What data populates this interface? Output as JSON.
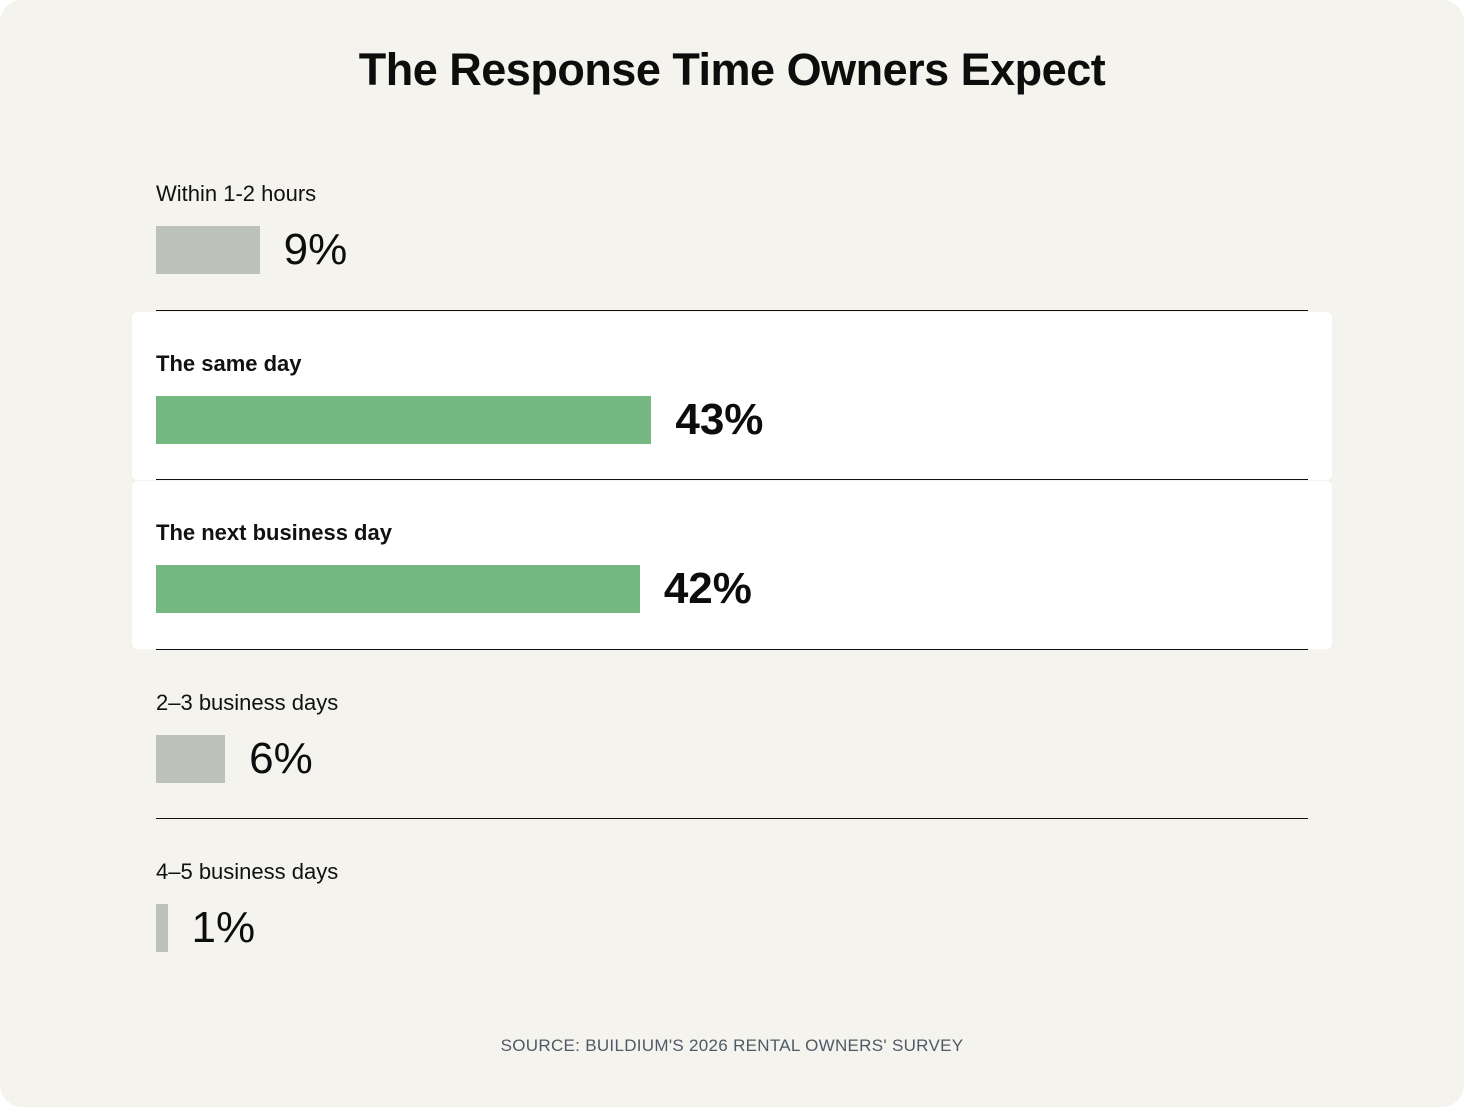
{
  "colors": {
    "background": "#f4f3ee",
    "highlight_row": "#ffffff",
    "bar_muted": "#bcc2ba",
    "bar_accent": "#75b882",
    "divider": "#111111",
    "source_text": "#4f5a66"
  },
  "chart_data": {
    "type": "bar",
    "orientation": "horizontal",
    "title": "The Response Time Owners Expect",
    "categories": [
      "Within 1-2 hours",
      "The same day",
      "The next business day",
      "2–3 business days",
      "4–5 business days"
    ],
    "values": [
      9,
      43,
      42,
      6,
      1
    ],
    "value_labels": [
      "9%",
      "43%",
      "42%",
      "6%",
      "1%"
    ],
    "highlighted": [
      false,
      true,
      true,
      false,
      false
    ],
    "unit": "%",
    "xlim": [
      0,
      100
    ],
    "grid": false,
    "source": "SOURCE: BUILDIUM'S 2026 RENTAL OWNERS' SURVEY"
  }
}
